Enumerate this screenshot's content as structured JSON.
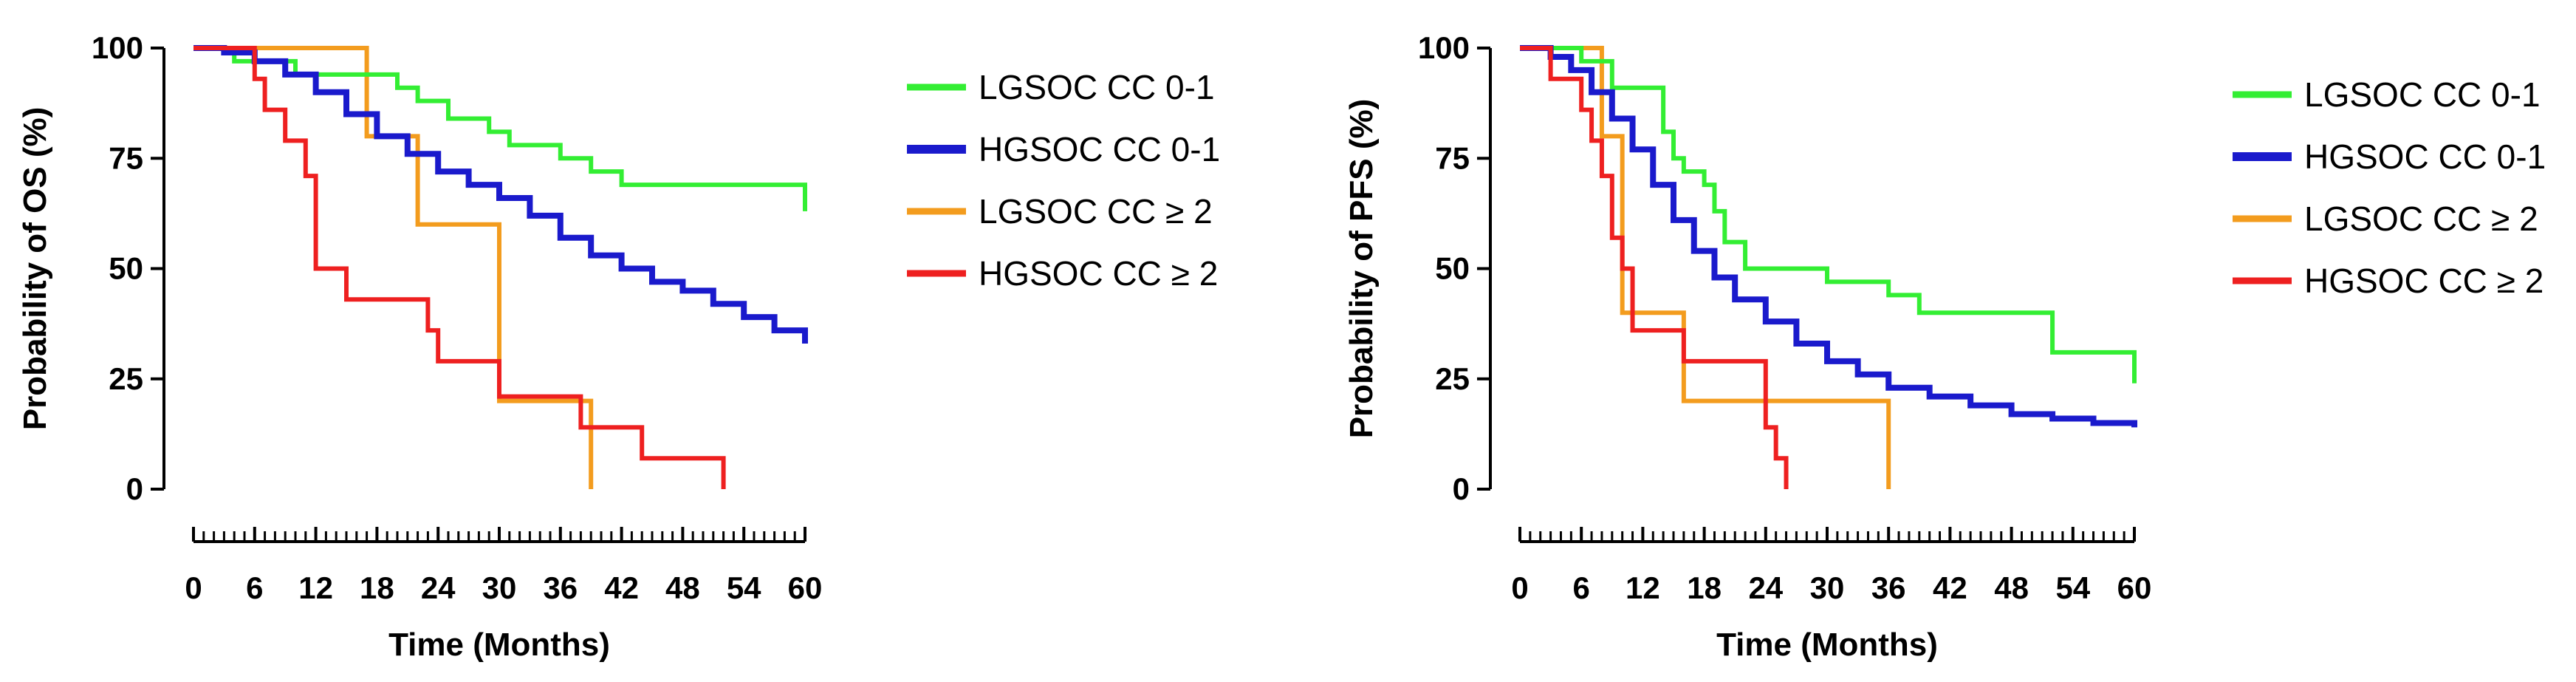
{
  "chart_data": [
    {
      "type": "line",
      "subtype": "kaplan-meier",
      "title": "",
      "xlabel": "Time (Months)",
      "ylabel": "Probability of OS (%)",
      "xlim": [
        0,
        60
      ],
      "ylim": [
        0,
        100
      ],
      "xticks": [
        0,
        6,
        12,
        18,
        24,
        30,
        36,
        42,
        48,
        54,
        60
      ],
      "yticks": [
        0,
        25,
        50,
        75,
        100
      ],
      "legend_position": "right",
      "series": [
        {
          "name": "LGSOC CC 0-1",
          "color": "#33ee33",
          "x": [
            0,
            4,
            10,
            16,
            20,
            22,
            25,
            29,
            31,
            36,
            39,
            42,
            60,
            60
          ],
          "y": [
            100,
            97,
            94,
            94,
            91,
            88,
            84,
            81,
            78,
            75,
            72,
            69,
            69,
            63
          ]
        },
        {
          "name": "HGSOC CC 0-1",
          "color": "#1a1acc",
          "x": [
            0,
            3,
            6,
            9,
            12,
            15,
            18,
            21,
            24,
            27,
            30,
            33,
            36,
            39,
            42,
            45,
            48,
            51,
            54,
            57,
            60
          ],
          "y": [
            100,
            99,
            97,
            94,
            90,
            85,
            80,
            76,
            72,
            69,
            66,
            62,
            57,
            53,
            50,
            47,
            45,
            42,
            39,
            36,
            33
          ]
        },
        {
          "name": "LGSOC CC ≥ 2",
          "color": "#f39c1e",
          "x": [
            0,
            17,
            22,
            30,
            39,
            39
          ],
          "y": [
            100,
            80,
            60,
            20,
            20,
            0
          ]
        },
        {
          "name": "HGSOC CC ≥ 2",
          "color": "#ee2020",
          "x": [
            0,
            6,
            7,
            9,
            11,
            12,
            15,
            23,
            24,
            30,
            38,
            44,
            52,
            52
          ],
          "y": [
            100,
            93,
            86,
            79,
            71,
            50,
            43,
            36,
            29,
            21,
            14,
            7,
            7,
            0
          ]
        }
      ]
    },
    {
      "type": "line",
      "subtype": "kaplan-meier",
      "title": "",
      "xlabel": "Time (Months)",
      "ylabel": "Probability of PFS (%)",
      "xlim": [
        0,
        60
      ],
      "ylim": [
        0,
        100
      ],
      "xticks": [
        0,
        6,
        12,
        18,
        24,
        30,
        36,
        42,
        48,
        54,
        60
      ],
      "yticks": [
        0,
        25,
        50,
        75,
        100
      ],
      "legend_position": "right",
      "series": [
        {
          "name": "LGSOC CC 0-1",
          "color": "#33ee33",
          "x": [
            0,
            6,
            9,
            14,
            15,
            16,
            18,
            19,
            20,
            22,
            24,
            30,
            36,
            39,
            52,
            60,
            60
          ],
          "y": [
            100,
            97,
            91,
            81,
            75,
            72,
            69,
            63,
            56,
            50,
            50,
            47,
            44,
            40,
            31,
            28,
            24
          ]
        },
        {
          "name": "HGSOC CC 0-1",
          "color": "#1a1acc",
          "x": [
            0,
            3,
            5,
            7,
            9,
            11,
            13,
            15,
            17,
            19,
            21,
            24,
            27,
            30,
            33,
            36,
            40,
            44,
            48,
            52,
            56,
            60
          ],
          "y": [
            100,
            98,
            95,
            90,
            84,
            77,
            69,
            61,
            54,
            48,
            43,
            38,
            33,
            29,
            26,
            23,
            21,
            19,
            17,
            16,
            15,
            14
          ]
        },
        {
          "name": "LGSOC CC ≥ 2",
          "color": "#f39c1e",
          "x": [
            0,
            8,
            10,
            16,
            36,
            36
          ],
          "y": [
            100,
            80,
            40,
            20,
            20,
            0
          ]
        },
        {
          "name": "HGSOC CC ≥ 2",
          "color": "#ee2020",
          "x": [
            0,
            3,
            6,
            7,
            8,
            9,
            10,
            11,
            16,
            24,
            25,
            26,
            26
          ],
          "y": [
            100,
            93,
            86,
            79,
            71,
            57,
            50,
            36,
            29,
            14,
            7,
            7,
            0
          ]
        }
      ]
    }
  ]
}
